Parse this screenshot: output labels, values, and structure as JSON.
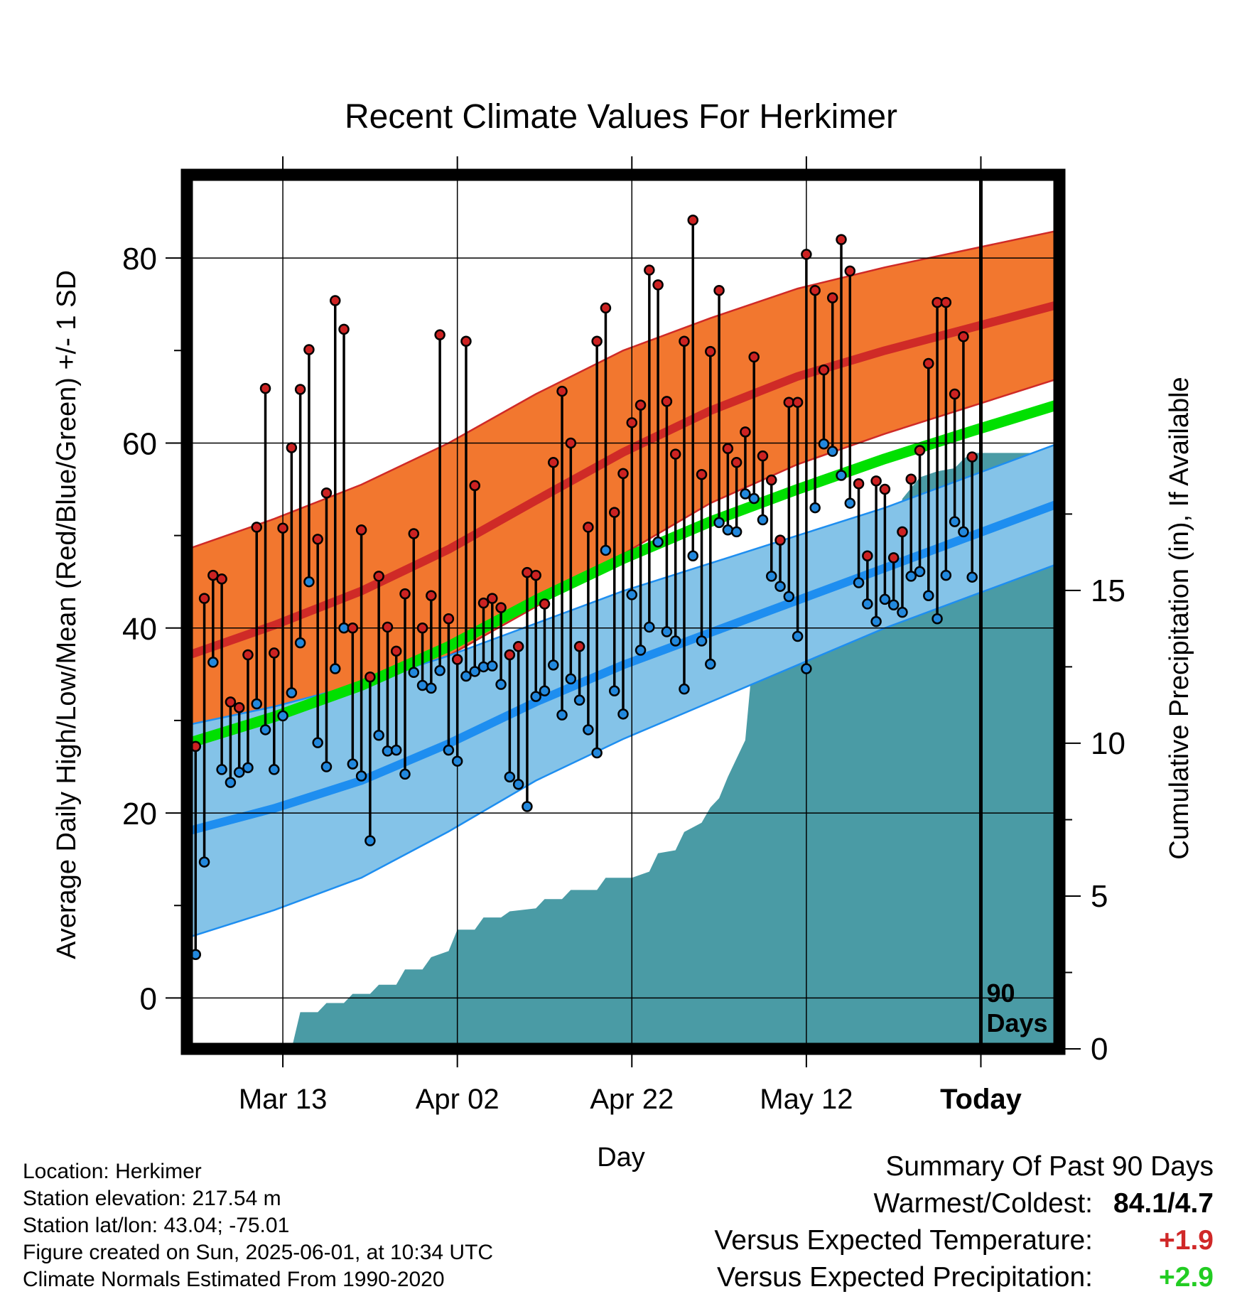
{
  "chart_data": {
    "type": "line",
    "title": "Recent Climate Values For Herkimer",
    "ylabel_left": "Average Daily High/Low/Mean (Red/Blue/Green) +/- 1 SD",
    "ylabel_right": "Cumulative Precipitation (in), If Available",
    "xlabel": "Day",
    "x_tick_labels": [
      "Mar 13",
      "Apr 02",
      "Apr 22",
      "May 12",
      "Today"
    ],
    "x_tick_days": [
      11,
      31,
      51,
      71,
      91
    ],
    "y_left_ticks": [
      "0",
      "20",
      "40",
      "60",
      "80"
    ],
    "y_right_ticks": [
      "0",
      "5",
      "10",
      "15"
    ],
    "ylim_left": [
      -5.5,
      89
    ],
    "ylim_right": [
      0,
      28.6
    ],
    "xlim": [
      0,
      100
    ],
    "today_marker": "90\nDays",
    "normals": {
      "day": [
        0,
        10,
        20,
        30,
        40,
        50,
        60,
        70,
        80,
        90,
        100
      ],
      "high_mean": [
        37,
        40.3,
        44,
        48.5,
        53.8,
        59,
        63.5,
        67.2,
        70,
        72.5,
        75
      ],
      "high_sd": [
        11.5,
        11.5,
        11.5,
        11.5,
        11.5,
        11,
        10,
        9.5,
        9,
        8.5,
        8
      ],
      "low_mean": [
        18,
        20.5,
        23.5,
        27.5,
        32,
        36,
        39.5,
        43,
        46.5,
        50,
        53.5
      ],
      "low_sd": [
        11.5,
        11,
        10.5,
        9.5,
        8.5,
        8,
        7.5,
        7,
        6.5,
        6.5,
        6.5
      ],
      "avg_mean": [
        27.5,
        30.4,
        33.8,
        38,
        43,
        47.5,
        51.5,
        55,
        58.3,
        61.3,
        64.2
      ]
    },
    "series": [
      {
        "name": "High",
        "values": [
          27.2,
          43.2,
          45.7,
          45.3,
          32,
          31.4,
          37.1,
          50.9,
          65.9,
          37.3,
          50.8,
          59.5,
          65.8,
          70.1,
          49.6,
          54.6,
          75.4,
          72.3,
          40,
          50.6,
          34.7,
          45.6,
          40.1,
          37.5,
          43.7,
          50.2,
          40,
          43.5,
          71.7,
          41,
          36.6,
          71,
          55.4,
          42.7,
          43.2,
          42.2,
          37.1,
          38,
          46,
          45.7,
          42.6,
          57.9,
          65.6,
          60,
          38,
          50.9,
          71,
          74.6,
          52.5,
          56.7,
          62.2,
          64.1,
          78.7,
          77.1,
          64.5,
          58.8,
          71,
          84.1,
          56.6,
          69.9,
          76.5,
          59.4,
          57.9,
          61.2,
          69.3,
          58.6,
          56,
          49.5,
          64.4,
          64.4,
          80.4,
          76.5,
          67.9,
          75.7,
          82,
          78.6,
          55.6,
          47.8,
          55.9,
          55,
          47.6,
          50.4,
          56.1,
          59.2,
          68.6,
          75.2,
          75.2,
          65.3,
          71.5,
          58.5
        ]
      },
      {
        "name": "Low",
        "values": [
          4.7,
          14.7,
          36.3,
          24.7,
          23.3,
          24.4,
          24.9,
          31.8,
          29,
          24.7,
          30.5,
          33,
          38.4,
          45,
          27.6,
          25,
          35.6,
          40,
          25.3,
          24,
          17,
          28.4,
          26.7,
          26.8,
          24.2,
          35.2,
          33.8,
          33.5,
          35.4,
          26.8,
          25.6,
          34.8,
          35.3,
          35.8,
          35.9,
          33.9,
          23.9,
          23.1,
          20.7,
          32.6,
          33.2,
          36,
          30.6,
          34.5,
          32.2,
          29,
          26.5,
          48.4,
          33.2,
          30.7,
          43.6,
          37.6,
          40.1,
          49.3,
          39.6,
          38.6,
          33.4,
          47.8,
          38.6,
          36.1,
          51.4,
          50.6,
          50.4,
          54.5,
          54,
          51.7,
          45.6,
          44.5,
          43.4,
          39.1,
          35.6,
          53,
          59.9,
          59.1,
          56.5,
          53.5,
          44.9,
          42.6,
          40.7,
          43.1,
          42.5,
          41.7,
          45.6,
          46.1,
          43.5,
          41,
          45.7,
          51.5,
          50.4,
          45.5
        ]
      }
    ],
    "precip_cumulative": {
      "day": [
        0,
        12,
        13,
        15,
        16,
        18,
        19,
        21,
        22,
        24,
        25,
        27,
        28,
        30,
        31,
        33,
        34,
        36,
        37,
        40,
        41,
        43,
        44,
        47,
        48,
        51,
        52,
        53,
        54,
        56,
        57,
        59,
        60,
        61,
        62,
        64,
        65,
        66,
        67,
        69,
        70,
        71,
        72,
        74,
        75,
        76,
        77,
        80,
        81,
        82,
        84,
        85,
        86,
        88,
        89,
        90,
        100
      ],
      "cum": [
        0,
        0,
        1.2,
        1.2,
        1.5,
        1.5,
        1.8,
        1.8,
        2.1,
        2.1,
        2.6,
        2.6,
        3,
        3.2,
        3.9,
        3.9,
        4.3,
        4.3,
        4.5,
        4.6,
        4.9,
        4.9,
        5.2,
        5.2,
        5.6,
        5.6,
        5.7,
        5.8,
        6.4,
        6.5,
        7.1,
        7.4,
        7.9,
        8.2,
        8.9,
        10.1,
        13.2,
        13.3,
        14.8,
        14.8,
        14.8,
        14.8,
        15,
        15,
        15.6,
        16.3,
        16.4,
        16.5,
        16.8,
        18,
        18.7,
        18.8,
        18.9,
        19,
        19.3,
        19.5,
        19.5
      ]
    }
  },
  "info": [
    "Location: Herkimer",
    "Station elevation: 217.54 m",
    "Station lat/lon: 43.04; -75.01",
    "Figure created on Sun, 2025-06-01, at 10:34 UTC",
    "Climate Normals Estimated From 1990-2020"
  ],
  "summary": {
    "heading": "Summary Of Past 90 Days",
    "warmest_coldest_label": "Warmest/Coldest:",
    "warmest_coldest_value": "84.1/4.7",
    "temp_label": "Versus Expected Temperature:",
    "temp_value": "+1.9",
    "precip_label": "Versus Expected Precipitation:",
    "precip_value": "+2.9"
  },
  "colors": {
    "high_band": "#f2772f",
    "high_line": "#cf2a27",
    "low_band": "#84c3e8",
    "low_line": "#1e8ef0",
    "avg_line": "#00e000",
    "precip": "#4a9ba5",
    "high_dot": "#cc2222",
    "low_dot": "#2288dd",
    "temp_positive": "#d02828",
    "precip_positive": "#22cc22"
  }
}
